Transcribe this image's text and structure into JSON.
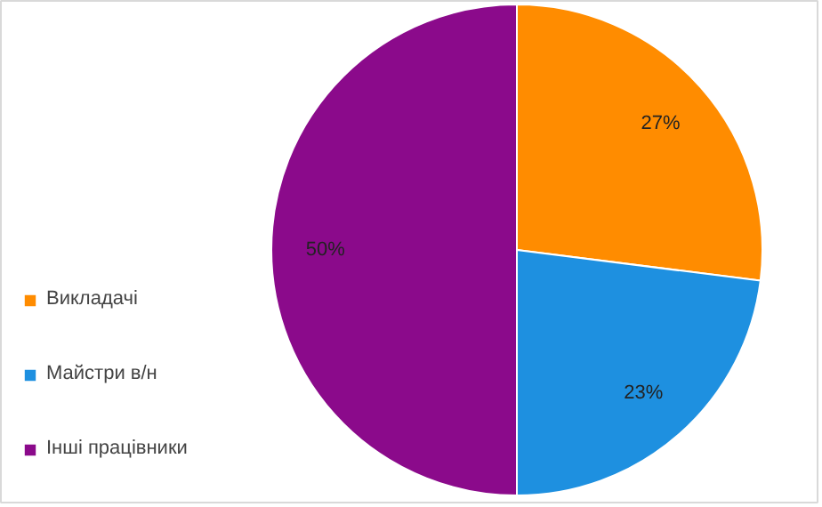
{
  "chart_data": {
    "type": "pie",
    "categories": [
      "Викладачі",
      "Майстри в/н",
      "Інші працівники"
    ],
    "values": [
      27,
      23,
      50
    ],
    "colors": [
      "#ff8c00",
      "#1e90e0",
      "#8b0a8b"
    ],
    "value_labels": [
      "27%",
      "23%",
      "50%"
    ],
    "legend": "left"
  }
}
